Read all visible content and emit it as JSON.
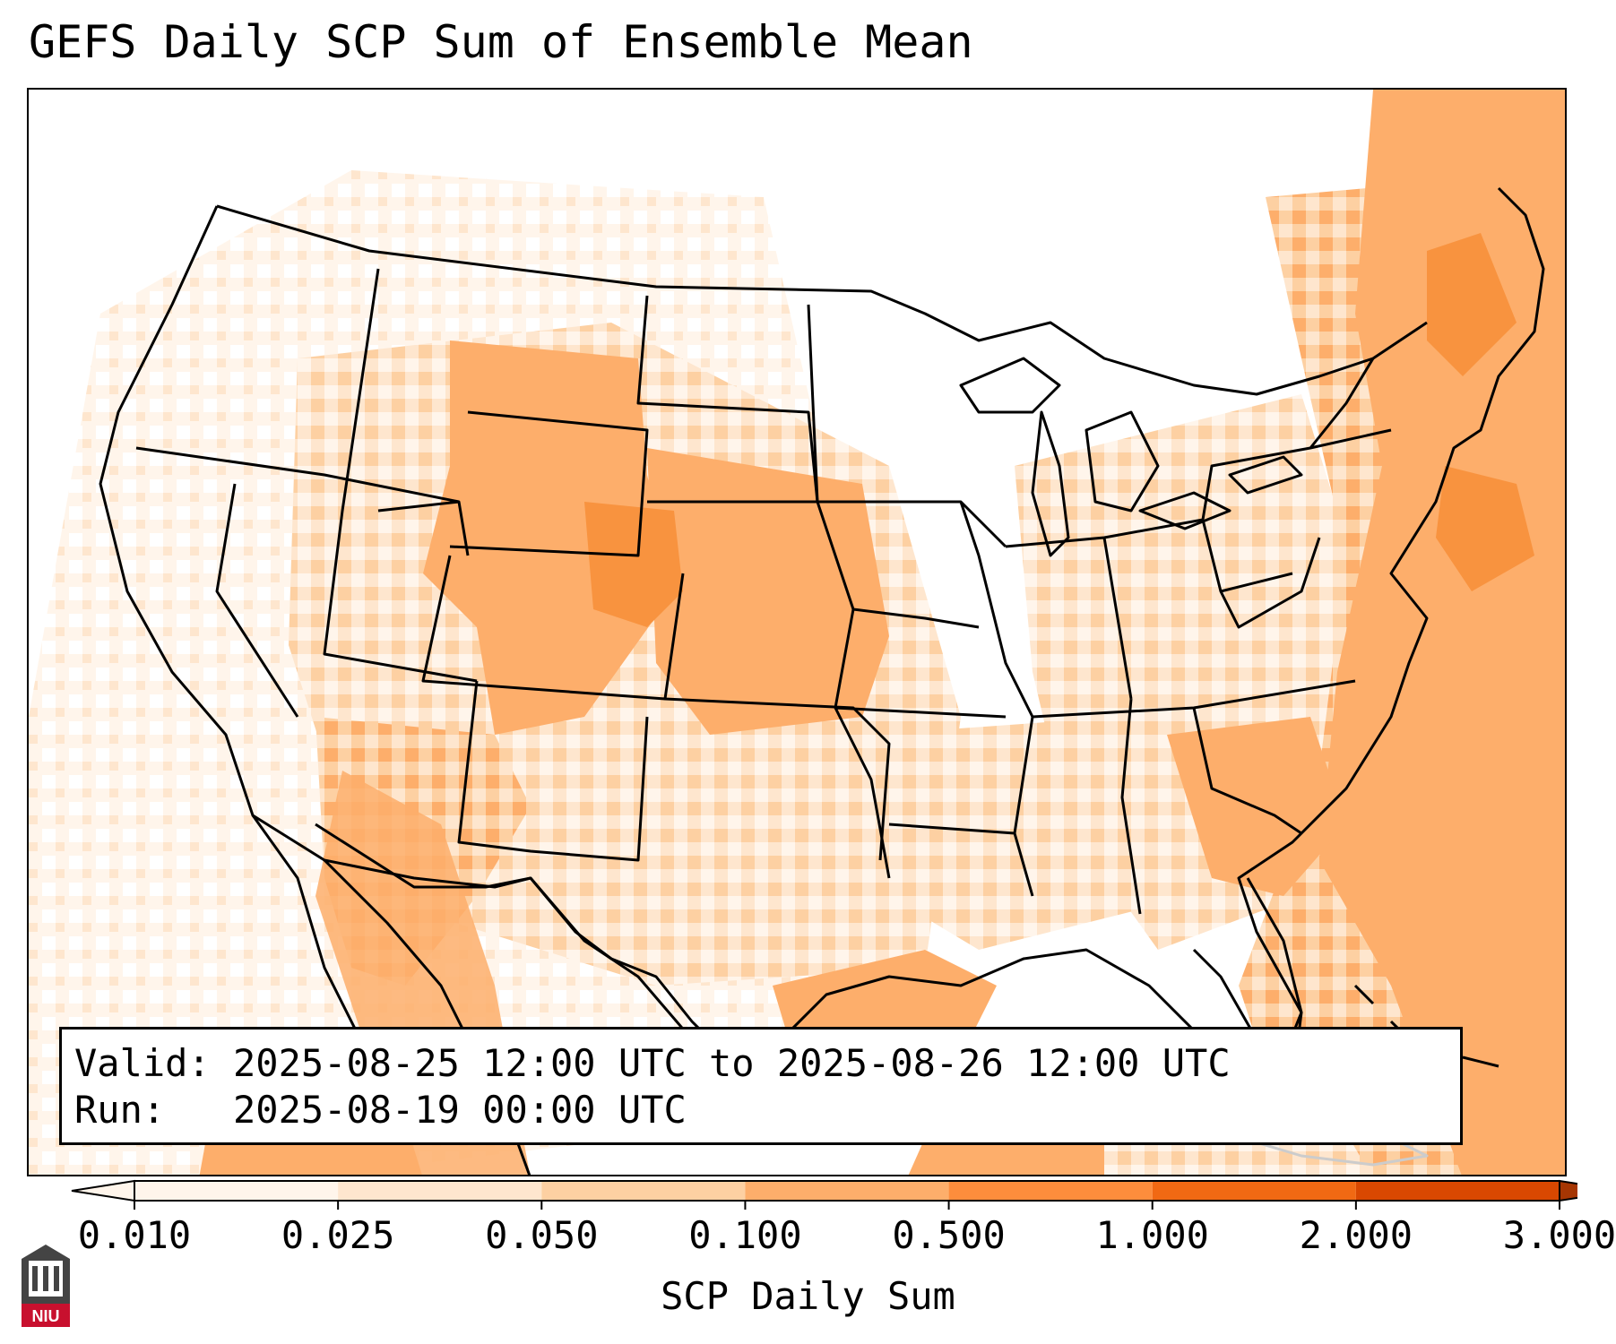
{
  "title": "GEFS Daily SCP Sum of Ensemble Mean",
  "valid_label": "Valid:",
  "valid_text": "2025-08-25 12:00 UTC to 2025-08-26 12:00 UTC",
  "run_label": "Run:",
  "run_text": "2025-08-19 00:00 UTC",
  "colorbar": {
    "label": "SCP Daily Sum",
    "ticks": [
      "0.010",
      "0.025",
      "0.050",
      "0.100",
      "0.500",
      "1.000",
      "2.000",
      "3.000"
    ],
    "colors": [
      "#fff5eb",
      "#fee6ce",
      "#fdd0a2",
      "#fdae6b",
      "#fd8d3c",
      "#f16913",
      "#d94801",
      "#a63603"
    ],
    "extend": "both"
  },
  "logo_text": "NIU",
  "colors": {
    "level1": "#fff5eb",
    "level2": "#fee6ce",
    "level3": "#fdd0a2",
    "level4": "#fdae6b",
    "level5": "#f16913",
    "border": "#000000"
  }
}
